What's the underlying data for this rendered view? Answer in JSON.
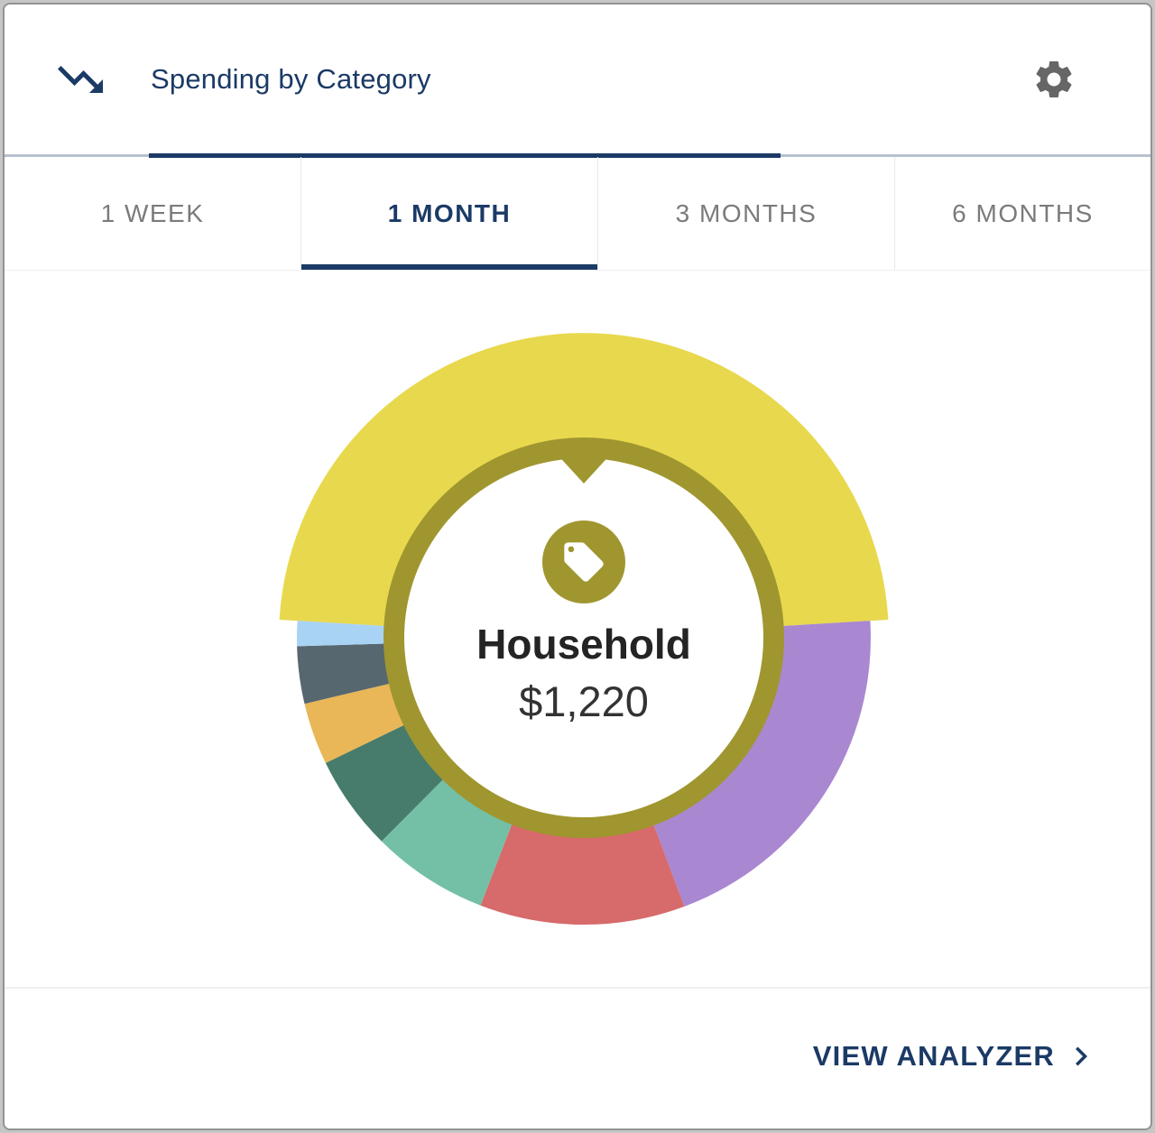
{
  "header": {
    "title": "Spending by Category",
    "title_color": "#1b3a66",
    "header_icon": "trending-down-icon",
    "settings_icon": "gear-icon"
  },
  "tabs": {
    "items": [
      {
        "label": "1 WEEK",
        "active": false
      },
      {
        "label": "1 MONTH",
        "active": true
      },
      {
        "label": "3 MONTHS",
        "active": false
      },
      {
        "label": "6 MONTHS",
        "active": false
      }
    ],
    "active_color": "#1b3a66",
    "inactive_color": "#7b7b7b"
  },
  "chart_data": {
    "type": "donut",
    "selected": {
      "label": "Household",
      "value": "$1,220"
    },
    "center_icon": "tag-icon",
    "ring_color": "#a0962f",
    "segments": [
      {
        "id": "household",
        "color": "#e8d84d",
        "start_deg": 273.4,
        "span_deg": 173.2,
        "selected": true
      },
      {
        "id": "purple",
        "color": "#a987d1",
        "start_deg": 86.6,
        "span_deg": 72.9,
        "selected": false
      },
      {
        "id": "red",
        "color": "#d76a6a",
        "start_deg": 159.5,
        "span_deg": 41.6,
        "selected": false
      },
      {
        "id": "seafoam",
        "color": "#74c0a6",
        "start_deg": 201.1,
        "span_deg": 23.7,
        "selected": false
      },
      {
        "id": "dark-teal",
        "color": "#477c6c",
        "start_deg": 224.8,
        "span_deg": 19.3,
        "selected": false
      },
      {
        "id": "orange",
        "color": "#e9b757",
        "start_deg": 244.1,
        "span_deg": 12.6,
        "selected": false
      },
      {
        "id": "slate",
        "color": "#57676f",
        "start_deg": 256.7,
        "span_deg": 11.6,
        "selected": false
      },
      {
        "id": "light-blue",
        "color": "#a9d3f5",
        "start_deg": 268.3,
        "span_deg": 5.1,
        "selected": false
      }
    ]
  },
  "footer": {
    "action_label": "VIEW ANALYZER",
    "action_icon": "chevron-right-icon"
  }
}
